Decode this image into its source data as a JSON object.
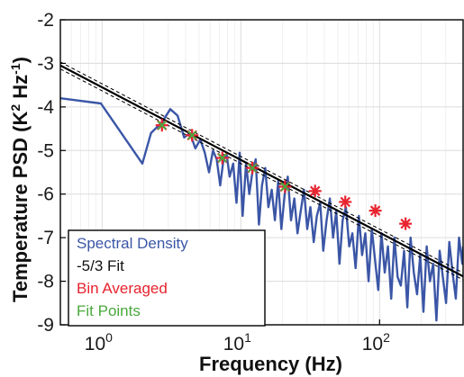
{
  "chart_data": {
    "type": "line",
    "title": "",
    "xlabel": "Frequency (Hz)",
    "ylabel": "Temperature PSD (K² Hz⁻¹)",
    "ylabel_parts": {
      "pre": "Temperature PSD (K",
      "sup1": "2",
      "mid": " Hz",
      "sup2": "-1",
      "post": ")"
    },
    "xscale": "log",
    "xlim": [
      0.5,
      400
    ],
    "ylim": [
      -9,
      -2
    ],
    "grid": true,
    "xticks": [
      1,
      10,
      100
    ],
    "xtick_labels": [
      {
        "base": "10",
        "exp": "0"
      },
      {
        "base": "10",
        "exp": "1"
      },
      {
        "base": "10",
        "exp": "2"
      }
    ],
    "yticks": [
      -9,
      -8,
      -7,
      -6,
      -5,
      -4,
      -3,
      -2
    ],
    "ytick_labels": [
      "-9",
      "-8",
      "-7",
      "-6",
      "-5",
      "-4",
      "-3",
      "-2"
    ],
    "legend_position": "bottom-left",
    "series": [
      {
        "name": "Spectral Density",
        "style": "line",
        "color": "#3b56a6",
        "x": [
          0.5,
          0.98,
          1.95,
          2.25,
          2.7,
          3.1,
          3.5,
          3.9,
          4.3,
          4.7,
          5.1,
          5.5,
          5.9,
          6.3,
          6.7,
          7.1,
          7.5,
          7.9,
          8.3,
          8.8,
          9.3,
          9.8,
          10.3,
          10.9,
          11.5,
          12.1,
          12.8,
          13.5,
          14.2,
          15.0,
          15.8,
          16.7,
          17.6,
          18.6,
          19.6,
          20.7,
          21.8,
          23.0,
          24.3,
          25.6,
          27.0,
          28.5,
          30.1,
          31.7,
          33.5,
          35.3,
          37.3,
          39.3,
          41.5,
          43.8,
          46.2,
          48.7,
          51.4,
          54.2,
          57.2,
          60.4,
          63.7,
          67.2,
          70.9,
          74.8,
          78.9,
          83.3,
          87.9,
          92.7,
          97.8,
          103.2,
          108.9,
          114.9,
          121.2,
          127.9,
          134.9,
          142.4,
          150.2,
          158.5,
          167.2,
          176.4,
          186.2,
          196.4,
          207.2,
          218.7,
          230.7,
          243.4,
          256.8,
          271.0,
          285.9,
          301.7,
          318.3,
          335.8,
          354.3,
          373.9,
          394.5,
          400
        ],
        "y": [
          -3.8,
          -3.92,
          -5.3,
          -4.6,
          -4.35,
          -4.05,
          -4.2,
          -4.7,
          -4.6,
          -4.95,
          -4.75,
          -5.05,
          -5.5,
          -5.0,
          -5.2,
          -5.8,
          -5.2,
          -5.1,
          -5.6,
          -5.3,
          -6.2,
          -5.05,
          -6.5,
          -5.3,
          -6.0,
          -5.5,
          -5.2,
          -6.7,
          -5.8,
          -5.4,
          -6.3,
          -5.9,
          -6.6,
          -5.7,
          -6.8,
          -6.0,
          -5.6,
          -6.6,
          -6.1,
          -6.9,
          -6.4,
          -5.9,
          -6.8,
          -6.3,
          -7.1,
          -6.5,
          -6.2,
          -7.3,
          -6.6,
          -6.1,
          -7.0,
          -6.4,
          -7.6,
          -6.6,
          -6.3,
          -7.2,
          -6.9,
          -7.7,
          -6.5,
          -7.4,
          -6.9,
          -8.0,
          -6.8,
          -7.5,
          -8.2,
          -6.9,
          -7.8,
          -7.2,
          -8.4,
          -7.0,
          -7.9,
          -8.1,
          -7.3,
          -8.6,
          -7.0,
          -7.8,
          -8.3,
          -7.4,
          -8.7,
          -7.2,
          -8.0,
          -7.6,
          -8.9,
          -7.3,
          -7.9,
          -8.5,
          -7.1,
          -7.8,
          -8.4,
          -7.0,
          -7.6,
          -7.2
        ]
      },
      {
        "name": "-5/3 Fit",
        "style": "fit",
        "color": "#000000",
        "slope": -1.6667,
        "intercept": -3.55,
        "band_offset": 0.08
      },
      {
        "name": "Bin Averaged",
        "style": "star",
        "color": "#e8232f",
        "x": [
          2.7,
          4.45,
          7.35,
          12.1,
          20.8,
          34.3,
          56.6,
          93.2,
          153.9
        ],
        "y": [
          -4.42,
          -4.65,
          -5.17,
          -5.4,
          -5.83,
          -5.93,
          -6.18,
          -6.38,
          -6.68
        ]
      },
      {
        "name": "Fit Points",
        "style": "x",
        "color": "#4aa83c",
        "x": [
          2.7,
          4.45,
          7.35,
          12.1,
          20.8
        ],
        "y": [
          -4.42,
          -4.65,
          -5.17,
          -5.4,
          -5.83
        ]
      }
    ]
  }
}
